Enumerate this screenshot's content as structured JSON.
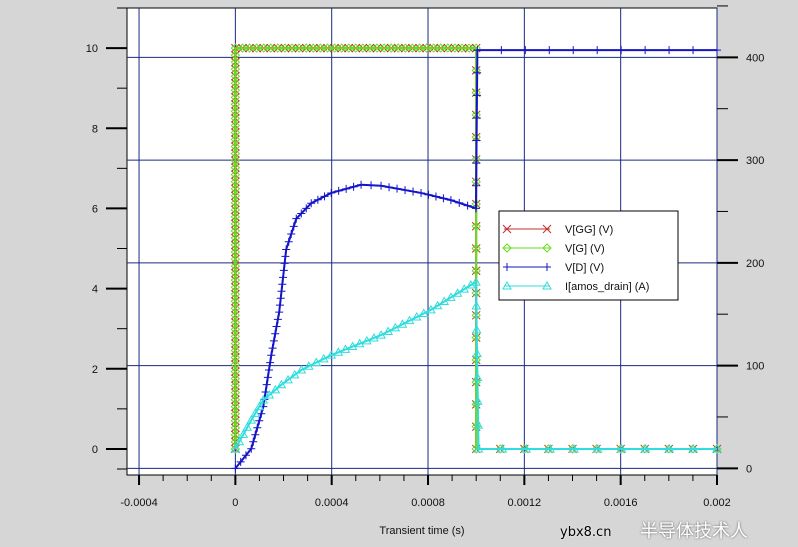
{
  "chart_data": {
    "type": "line",
    "title": "",
    "xlabel": "Transient time (s)",
    "ylabel": "",
    "y2label": "",
    "xlim": [
      -0.00045,
      0.002
    ],
    "ylim": [
      -0.65,
      11
    ],
    "y2lim": [
      -6.5,
      448
    ],
    "x_ticks": [
      -0.0004,
      0,
      0.0004,
      0.0008,
      0.0012,
      0.0016,
      0.002
    ],
    "x_tick_labels": [
      "-0.0004",
      "0",
      "0.0004",
      "0.0008",
      "0.0012",
      "0.0016",
      "0.002"
    ],
    "y_ticks": [
      0,
      2,
      4,
      6,
      8,
      10
    ],
    "y_tick_labels": [
      "0",
      "2",
      "4",
      "6",
      "8",
      "10"
    ],
    "y2_ticks": [
      0,
      100,
      200,
      300,
      400
    ],
    "y2_tick_labels": [
      "0",
      "100",
      "200",
      "300",
      "400"
    ],
    "grid": true,
    "legend_placement": "center-right",
    "series": [
      {
        "name": "V[GG] (V)",
        "axis": "left",
        "color": "#c03030",
        "marker": "x",
        "x": [
          0,
          0,
          0.001,
          0.001,
          0.002
        ],
        "y": [
          0,
          10,
          10,
          0,
          0
        ]
      },
      {
        "name": "V[G] (V)",
        "axis": "left",
        "color": "#66dd22",
        "marker": "diamond",
        "x": [
          0,
          0,
          0.001,
          0.001,
          0.002
        ],
        "y": [
          0,
          10,
          10,
          0,
          0
        ]
      },
      {
        "name": "V[D] (V)",
        "axis": "right",
        "color": "#1414c8",
        "marker": "plus",
        "x": [
          0,
          6.6e-05,
          0.000116,
          0.000149,
          0.000182,
          0.000211,
          0.000253,
          0.000315,
          0.000398,
          0.000522,
          0.000605,
          0.000771,
          0.000895,
          0.000999,
          0.001005,
          0.002
        ],
        "y": [
          0,
          19,
          60,
          110,
          152,
          213,
          243,
          258,
          268,
          276,
          275,
          268,
          261,
          253,
          407,
          407
        ]
      },
      {
        "name": "I[amos_drain] (A)",
        "axis": "left",
        "color": "#30dcdc",
        "marker": "triangle",
        "x": [
          0,
          6.6e-05,
          0.000116,
          0.000191,
          0.000274,
          0.000398,
          0.000605,
          0.000812,
          0.000978,
          0.000999,
          0.00101,
          0.002
        ],
        "y": [
          0,
          0.72,
          1.22,
          1.6,
          1.97,
          2.34,
          2.84,
          3.47,
          4.09,
          4.16,
          0,
          0
        ]
      }
    ]
  },
  "watermark": {
    "brand": "半导体技术人",
    "site": "ybx8.cn"
  }
}
